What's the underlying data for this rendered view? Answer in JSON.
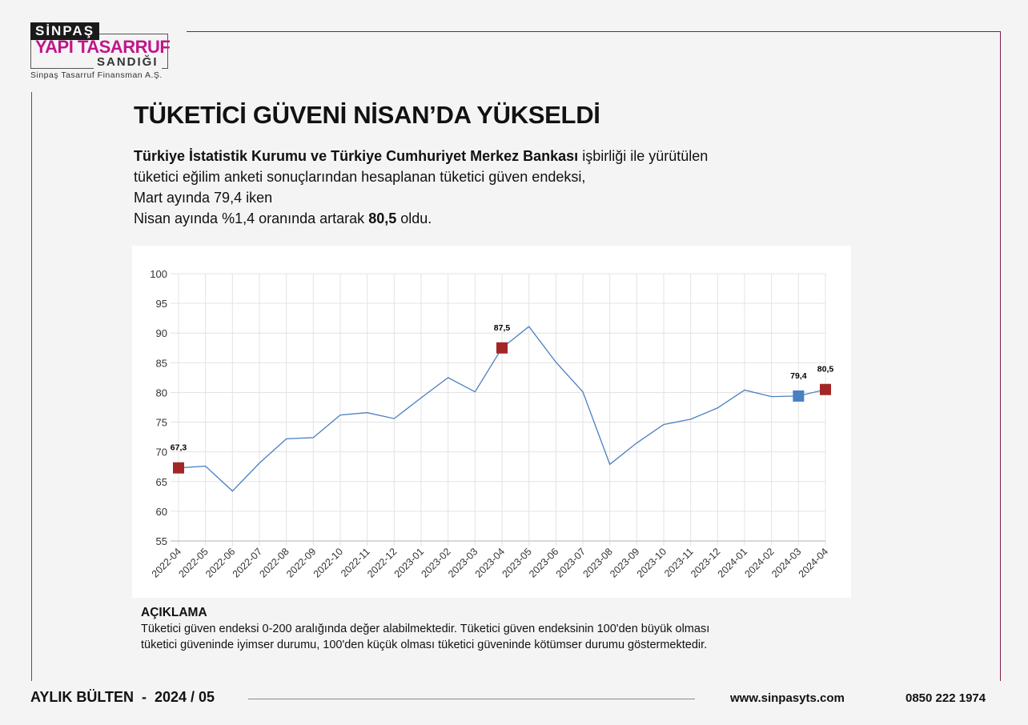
{
  "logo": {
    "top": "SİNPAŞ",
    "middle": "YAPI TASARRUF",
    "bottom": "SANDIĞI",
    "subtitle": "Sinpaş Tasarruf Finansman A.Ş."
  },
  "title": "TÜKETİCİ GÜVENİ NİSAN’DA YÜKSELDİ",
  "intro": {
    "bold1": "Türkiye İstatistik Kurumu ve Türkiye Cumhuriyet Merkez Bankası",
    "text1": " işbirliği ile yürütülen",
    "line2": "tüketici eğilim anketi sonuçlarından hesaplanan tüketici güven endeksi,",
    "line3": "Mart ayında 79,4 iken",
    "line4a": "Nisan ayında %1,4 oranında artarak ",
    "line4b": "80,5",
    "line4c": " oldu."
  },
  "chart_data": {
    "type": "line",
    "categories": [
      "2022-04",
      "2022-05",
      "2022-06",
      "2022-07",
      "2022-08",
      "2022-09",
      "2022-10",
      "2022-11",
      "2022-12",
      "2023-01",
      "2023-02",
      "2023-03",
      "2023-04",
      "2023-05",
      "2023-06",
      "2023-07",
      "2023-08",
      "2023-09",
      "2023-10",
      "2023-11",
      "2023-12",
      "2024-01",
      "2024-02",
      "2024-03",
      "2024-04"
    ],
    "values": [
      67.3,
      67.6,
      63.4,
      68.1,
      72.2,
      72.4,
      76.2,
      76.6,
      75.6,
      79.1,
      82.5,
      80.1,
      87.5,
      91.1,
      85.1,
      80.1,
      67.9,
      71.5,
      74.6,
      75.5,
      77.4,
      80.4,
      79.3,
      79.4,
      80.5
    ],
    "ylim": [
      55,
      100
    ],
    "yticks": [
      55,
      60,
      65,
      70,
      75,
      80,
      85,
      90,
      95,
      100
    ],
    "grid": true,
    "line_color": "#4a7fc1",
    "highlights": [
      {
        "category": "2022-04",
        "label": "67,3",
        "color": "#a32626"
      },
      {
        "category": "2023-04",
        "label": "87,5",
        "color": "#a32626"
      },
      {
        "category": "2024-03",
        "label": "79,4",
        "color": "#4a7fc1"
      },
      {
        "category": "2024-04",
        "label": "80,5",
        "color": "#a32626"
      }
    ]
  },
  "explanation": {
    "heading": "AÇIKLAMA",
    "line1": "Tüketici güven endeksi 0-200 aralığında değer alabilmektedir. Tüketici güven endeksinin 100'den büyük olması",
    "line2": "tüketici güveninde iyimser durumu, 100'den küçük olması tüketici güveninde kötümser durumu göstermektedir."
  },
  "footer": {
    "bulletin": "AYLIK BÜLTEN  -  2024 / 05",
    "website": "www.sinpasyts.com",
    "phone": "0850 222 1974"
  }
}
